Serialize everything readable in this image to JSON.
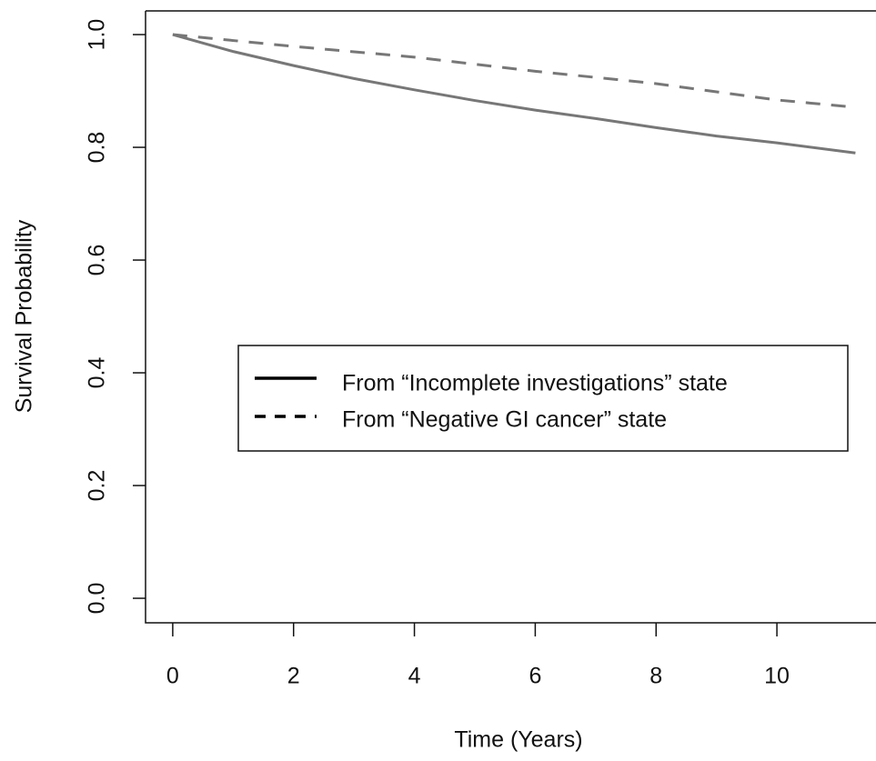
{
  "chart_data": {
    "type": "line",
    "x_label": "Time (Years)",
    "y_label": "Survival Probability",
    "xlim": [
      -0.45,
      11.64
    ],
    "ylim": [
      -0.0435,
      1.042
    ],
    "xticks": [
      0,
      2,
      4,
      6,
      8,
      10
    ],
    "yticks": [
      {
        "value": 0,
        "label": "0.0"
      },
      0.2,
      0.4,
      0.6,
      0.8,
      {
        "value": 1,
        "label": "1.0"
      }
    ],
    "legend_position": "center-right",
    "series": [
      {
        "name": "From “Incomplete investigations” state",
        "color": "#777777",
        "dash": "solid",
        "x": [
          0,
          1,
          2,
          3,
          4,
          5,
          6,
          7,
          8,
          9,
          10,
          11.3
        ],
        "values": [
          1.0,
          0.97,
          0.945,
          0.922,
          0.902,
          0.883,
          0.866,
          0.851,
          0.835,
          0.82,
          0.808,
          0.79
        ]
      },
      {
        "name": "From “Negative GI cancer” state",
        "color": "#777777",
        "dash": "dashed",
        "x": [
          0,
          2,
          4,
          6,
          8,
          10,
          11.3
        ],
        "values": [
          1.0,
          0.979,
          0.96,
          0.935,
          0.913,
          0.884,
          0.871
        ]
      }
    ]
  }
}
